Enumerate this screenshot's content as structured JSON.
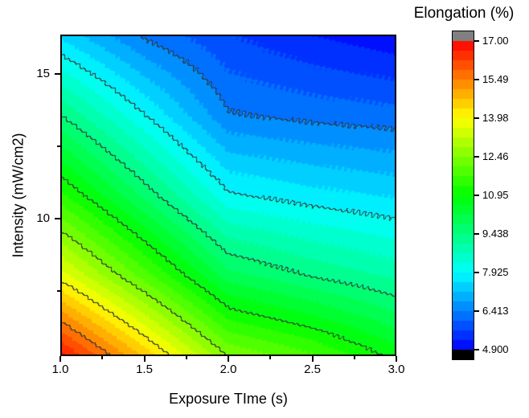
{
  "figure": {
    "background": "#ffffff"
  },
  "chart_data": {
    "type": "heatmap",
    "style": "filled-contour",
    "title": "",
    "xlabel": "Exposure TIme (s)",
    "ylabel": "Intensity (mW/cm2)",
    "colorbar_title": "Elongation (%)",
    "x_range": [
      1.0,
      3.0
    ],
    "y_range": [
      5.25,
      16.36
    ],
    "z_range": [
      4.9,
      17.0
    ],
    "x_ticks": [
      "1.0",
      "1.5",
      "2.0",
      "2.5",
      "3.0"
    ],
    "x_tick_values": [
      1.0,
      1.5,
      2.0,
      2.5,
      3.0
    ],
    "x_minor_tick_values": [
      1.25,
      1.75,
      2.25,
      2.75
    ],
    "y_ticks": [
      "15",
      "10"
    ],
    "y_tick_values": [
      15,
      10
    ],
    "y_minor_tick_values": [
      12.5,
      7.5
    ],
    "colorbar_labels": [
      "17.00",
      "15.49",
      "13.98",
      "12.46",
      "10.95",
      "9.438",
      "7.925",
      "6.413",
      "4.900"
    ],
    "colorbar_levels": [
      17.0,
      15.49,
      13.98,
      12.46,
      10.95,
      9.438,
      7.925,
      6.413,
      4.9
    ],
    "contour_levels": [
      6.413,
      7.925,
      9.438,
      10.95,
      12.46,
      13.98,
      15.49
    ],
    "sub_bands": 32,
    "grid_x": [
      1.0,
      1.5,
      2.0,
      2.5,
      3.0
    ],
    "grid_y": [
      5.25,
      8.03,
      10.81,
      13.58,
      16.36
    ],
    "grid_z": [
      [
        16.7,
        14.6,
        12.4,
        11.75,
        10.8
      ],
      [
        13.75,
        11.85,
        9.95,
        9.4,
        8.97
      ],
      [
        11.4,
        9.7,
        8.0,
        7.7,
        7.5
      ],
      [
        9.44,
        7.95,
        6.46,
        6.3,
        6.2
      ],
      [
        7.45,
        6.35,
        5.7,
        5.3,
        5.0
      ]
    ],
    "colormap": {
      "name": "rainbow",
      "min_color": "#0000ff",
      "max_color": "#ff0000",
      "hue_start": 240,
      "hue_end": 0
    },
    "above_max_color": "#808080",
    "below_min_color": "#000000",
    "contour_line_color": "#333333",
    "frame_color": "#000000"
  }
}
